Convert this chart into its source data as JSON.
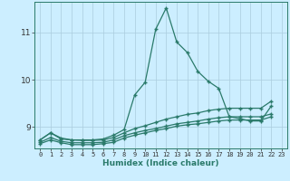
{
  "xlabel": "Humidex (Indice chaleur)",
  "background_color": "#cceeff",
  "grid_color": "#aaccdd",
  "line_color": "#2a7a6a",
  "xlim": [
    -0.5,
    23.5
  ],
  "ylim": [
    8.55,
    11.65
  ],
  "yticks": [
    9,
    10,
    11
  ],
  "xticks": [
    0,
    1,
    2,
    3,
    4,
    5,
    6,
    7,
    8,
    9,
    10,
    11,
    12,
    13,
    14,
    15,
    16,
    17,
    18,
    19,
    20,
    21,
    22,
    23
  ],
  "series": [
    [
      0,
      8.73,
      1,
      8.88,
      2,
      8.75,
      3,
      8.73,
      4,
      8.73,
      5,
      8.73,
      6,
      8.75,
      7,
      8.83,
      8,
      8.95,
      9,
      9.68,
      10,
      9.95,
      11,
      11.07,
      12,
      11.52,
      13,
      10.8,
      14,
      10.58,
      15,
      10.18,
      16,
      9.97,
      17,
      9.82,
      18,
      9.22,
      19,
      9.18,
      20,
      9.13,
      21,
      9.13,
      22,
      9.45
    ],
    [
      0,
      8.73,
      1,
      8.88,
      2,
      8.77,
      3,
      8.73,
      4,
      8.72,
      5,
      8.72,
      6,
      8.73,
      7,
      8.78,
      8,
      8.88,
      9,
      8.97,
      10,
      9.03,
      11,
      9.1,
      12,
      9.17,
      13,
      9.22,
      14,
      9.27,
      15,
      9.3,
      16,
      9.35,
      17,
      9.38,
      18,
      9.4,
      19,
      9.4,
      20,
      9.4,
      21,
      9.4,
      22,
      9.55
    ],
    [
      0,
      8.68,
      1,
      8.78,
      2,
      8.7,
      3,
      8.67,
      4,
      8.67,
      5,
      8.67,
      6,
      8.68,
      7,
      8.73,
      8,
      8.82,
      9,
      8.88,
      10,
      8.93,
      11,
      8.97,
      12,
      9.02,
      13,
      9.07,
      14,
      9.1,
      15,
      9.13,
      16,
      9.17,
      17,
      9.2,
      18,
      9.22,
      19,
      9.22,
      20,
      9.22,
      21,
      9.22,
      22,
      9.28
    ],
    [
      0,
      8.65,
      1,
      8.73,
      2,
      8.67,
      3,
      8.63,
      4,
      8.63,
      5,
      8.63,
      6,
      8.65,
      7,
      8.68,
      8,
      8.77,
      9,
      8.83,
      10,
      8.88,
      11,
      8.93,
      12,
      8.97,
      13,
      9.02,
      14,
      9.05,
      15,
      9.07,
      16,
      9.1,
      17,
      9.13,
      18,
      9.15,
      19,
      9.15,
      20,
      9.15,
      21,
      9.15,
      22,
      9.22
    ]
  ],
  "marker": "+",
  "markersize": 3.5,
  "linewidth": 0.9
}
